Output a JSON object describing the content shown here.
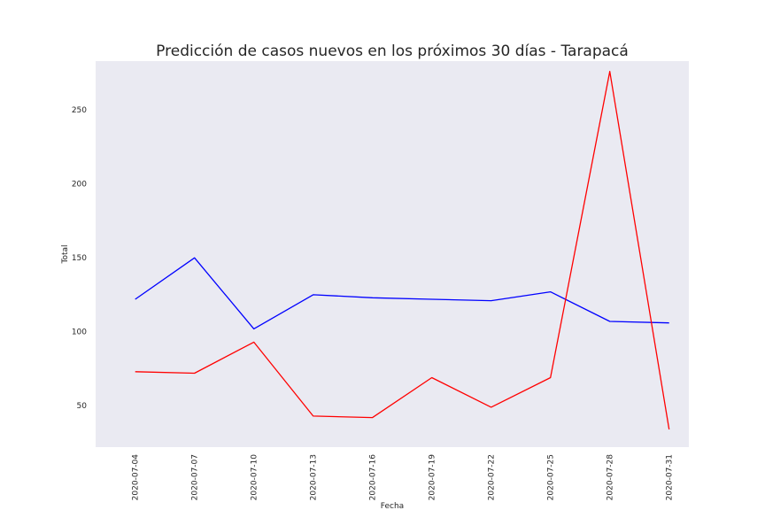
{
  "chart_data": {
    "type": "line",
    "title": "Predicción de casos nuevos en los próximos 30 días - Tarapacá",
    "xlabel": "Fecha",
    "ylabel": "Total",
    "x_ticks": [
      "2020-07-04",
      "2020-07-07",
      "2020-07-10",
      "2020-07-13",
      "2020-07-16",
      "2020-07-19",
      "2020-07-22",
      "2020-07-25",
      "2020-07-28",
      "2020-07-31"
    ],
    "y_ticks": [
      50,
      100,
      150,
      200,
      250
    ],
    "ylim": [
      22,
      283
    ],
    "xlim": [
      "2020-07-02",
      "2020-08-01"
    ],
    "grid": false,
    "background": "#eaeaf2",
    "series": [
      {
        "color": "#0000ff",
        "x": [
          "2020-07-04",
          "2020-07-07",
          "2020-07-10",
          "2020-07-13",
          "2020-07-16",
          "2020-07-19",
          "2020-07-22",
          "2020-07-25",
          "2020-07-28",
          "2020-07-31"
        ],
        "values": [
          122,
          150,
          102,
          125,
          123,
          122,
          121,
          127,
          107,
          106
        ]
      },
      {
        "color": "#ff0000",
        "x": [
          "2020-07-04",
          "2020-07-07",
          "2020-07-10",
          "2020-07-13",
          "2020-07-16",
          "2020-07-19",
          "2020-07-22",
          "2020-07-25",
          "2020-07-28",
          "2020-07-31"
        ],
        "values": [
          73,
          72,
          93,
          43,
          42,
          69,
          49,
          69,
          276,
          34
        ]
      }
    ]
  }
}
